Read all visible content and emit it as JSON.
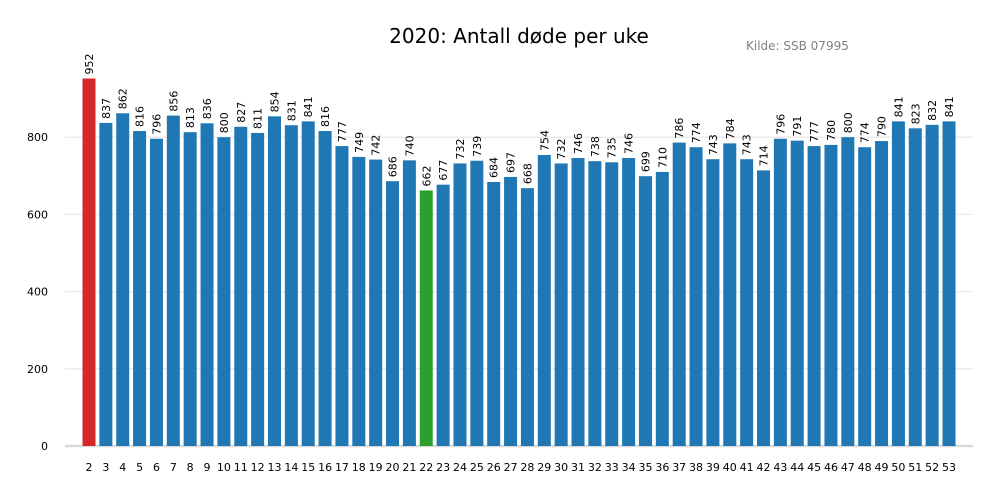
{
  "chart_data": {
    "type": "bar",
    "title": "2020: Antall døde per uke",
    "source": "Kilde: SSB 07995",
    "xlabel": "",
    "ylabel": "",
    "ylim": [
      0,
      1000
    ],
    "yticks": [
      0,
      200,
      400,
      600,
      800
    ],
    "grid": true,
    "categories": [
      "2",
      "3",
      "4",
      "5",
      "6",
      "7",
      "8",
      "9",
      "10",
      "11",
      "12",
      "13",
      "14",
      "15",
      "16",
      "17",
      "18",
      "19",
      "20",
      "21",
      "22",
      "23",
      "24",
      "25",
      "26",
      "27",
      "28",
      "29",
      "30",
      "31",
      "32",
      "33",
      "34",
      "35",
      "36",
      "37",
      "38",
      "39",
      "40",
      "41",
      "42",
      "43",
      "44",
      "45",
      "46",
      "47",
      "48",
      "49",
      "50",
      "51",
      "52",
      "53"
    ],
    "values": [
      952,
      837,
      862,
      816,
      796,
      856,
      813,
      836,
      800,
      827,
      811,
      854,
      831,
      841,
      816,
      777,
      749,
      742,
      686,
      740,
      662,
      677,
      732,
      739,
      684,
      697,
      668,
      754,
      732,
      746,
      738,
      735,
      746,
      699,
      710,
      786,
      774,
      743,
      784,
      743,
      714,
      796,
      791,
      777,
      780,
      800,
      774,
      790,
      841,
      823,
      832,
      841
    ],
    "colors": {
      "default": "#1f77b4",
      "max": "#d62728",
      "min": "#2ca02c"
    },
    "highlight": {
      "max_week": "2",
      "min_week": "22"
    }
  }
}
